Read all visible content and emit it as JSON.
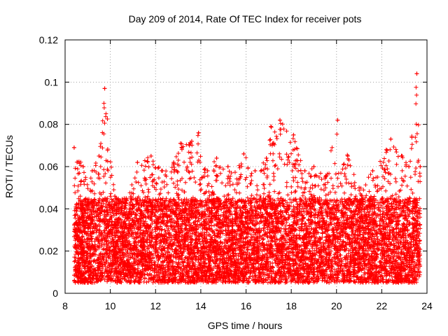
{
  "chart_data": {
    "type": "scatter",
    "title": "Day 209 of 2014, Rate Of TEC Index for receiver pots",
    "xlabel": "GPS time / hours",
    "ylabel": "ROTI / TECUs",
    "xlim": [
      8,
      24
    ],
    "ylim": [
      0,
      0.12
    ],
    "xticks": [
      8,
      10,
      12,
      14,
      16,
      18,
      20,
      22,
      24
    ],
    "yticks": [
      0,
      0.02,
      0.04,
      0.06,
      0.08,
      0.1,
      0.12
    ],
    "xtick_labels": [
      "8",
      "10",
      "12",
      "14",
      "16",
      "18",
      "20",
      "22",
      "24"
    ],
    "ytick_labels": [
      "0",
      "0.02",
      "0.04",
      "0.06",
      "0.08",
      "0.1",
      "0.12"
    ],
    "grid": true,
    "marker": "+",
    "color": "#ff0000",
    "series": [
      {
        "name": "ROTI",
        "x_range": [
          8.4,
          23.7
        ],
        "point_count_estimate": 9000,
        "typical_range": [
          0.005,
          0.045
        ],
        "envelope": [
          {
            "x": 8.4,
            "y": 0.069
          },
          {
            "x": 8.8,
            "y": 0.06
          },
          {
            "x": 9.2,
            "y": 0.058
          },
          {
            "x": 9.5,
            "y": 0.065
          },
          {
            "x": 9.75,
            "y": 0.097
          },
          {
            "x": 10.2,
            "y": 0.046
          },
          {
            "x": 10.7,
            "y": 0.045
          },
          {
            "x": 11.2,
            "y": 0.062
          },
          {
            "x": 11.8,
            "y": 0.065
          },
          {
            "x": 12.3,
            "y": 0.058
          },
          {
            "x": 12.8,
            "y": 0.062
          },
          {
            "x": 13.1,
            "y": 0.071
          },
          {
            "x": 13.6,
            "y": 0.072
          },
          {
            "x": 13.9,
            "y": 0.076
          },
          {
            "x": 14.3,
            "y": 0.058
          },
          {
            "x": 14.7,
            "y": 0.064
          },
          {
            "x": 15.2,
            "y": 0.06
          },
          {
            "x": 15.9,
            "y": 0.066
          },
          {
            "x": 16.4,
            "y": 0.058
          },
          {
            "x": 16.9,
            "y": 0.064
          },
          {
            "x": 17.1,
            "y": 0.079
          },
          {
            "x": 17.5,
            "y": 0.082
          },
          {
            "x": 18.1,
            "y": 0.075
          },
          {
            "x": 18.6,
            "y": 0.058
          },
          {
            "x": 19.0,
            "y": 0.06
          },
          {
            "x": 19.5,
            "y": 0.055
          },
          {
            "x": 20.05,
            "y": 0.082
          },
          {
            "x": 20.5,
            "y": 0.065
          },
          {
            "x": 21.0,
            "y": 0.05
          },
          {
            "x": 21.6,
            "y": 0.058
          },
          {
            "x": 22.2,
            "y": 0.068
          },
          {
            "x": 22.4,
            "y": 0.073
          },
          {
            "x": 22.9,
            "y": 0.065
          },
          {
            "x": 23.2,
            "y": 0.06
          },
          {
            "x": 23.55,
            "y": 0.104
          },
          {
            "x": 23.7,
            "y": 0.06
          }
        ]
      }
    ]
  }
}
